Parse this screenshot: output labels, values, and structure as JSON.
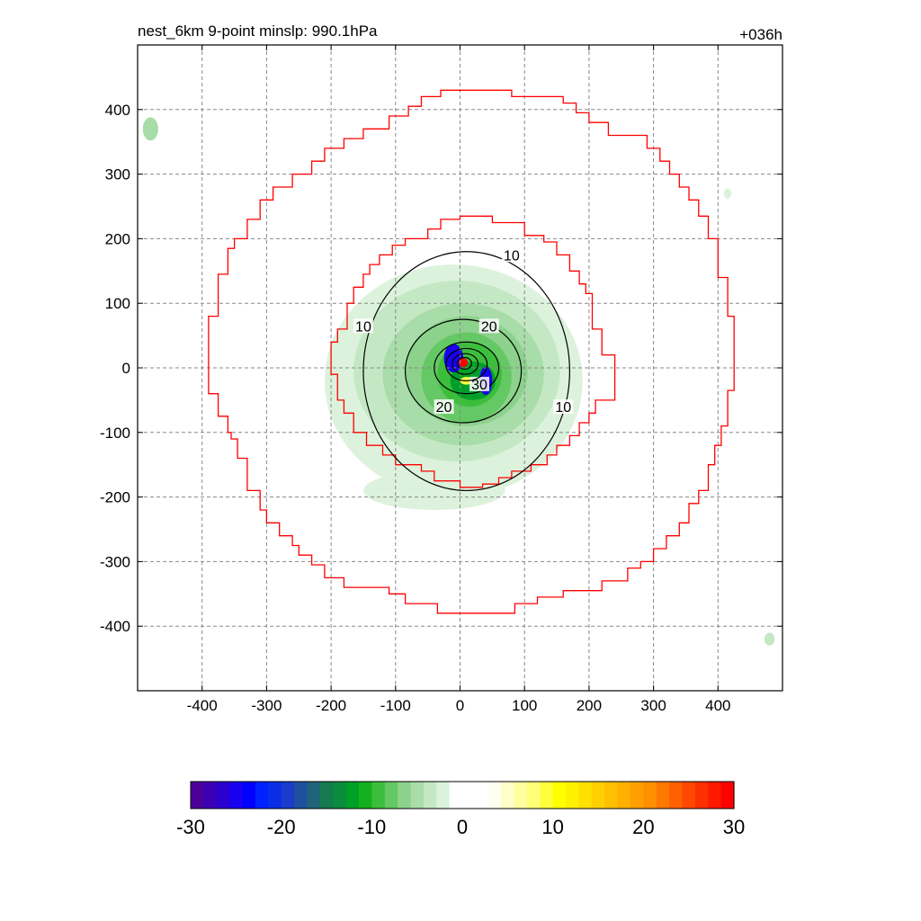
{
  "chart_data": {
    "type": "heatmap",
    "title": "nest_6km  9-point minslp: 990.1hPa",
    "title_right": "+036h",
    "xlabel": "",
    "ylabel": "",
    "xlim": [
      -500,
      500
    ],
    "ylim": [
      -500,
      500
    ],
    "xticks": [
      -400,
      -300,
      -200,
      -100,
      0,
      100,
      200,
      300,
      400
    ],
    "yticks": [
      -400,
      -300,
      -200,
      -100,
      0,
      100,
      200,
      300,
      400
    ],
    "grid": true,
    "grid_style": "dashed",
    "center": [
      5,
      5
    ],
    "colorbar": {
      "orientation": "horizontal",
      "range": [
        -30,
        30
      ],
      "tick_labels": [
        -30,
        -20,
        -10,
        0,
        10,
        20,
        30
      ],
      "colors": [
        "#4b0097",
        "#3c00b4",
        "#2d00d2",
        "#1a00f0",
        "#0000ff",
        "#0022ff",
        "#0a2ee6",
        "#1a3cc8",
        "#1f50a0",
        "#1f6478",
        "#167a50",
        "#0a8c3c",
        "#00a028",
        "#14b01e",
        "#3cbe3c",
        "#64c864",
        "#8cd28c",
        "#a8dca8",
        "#c4e8c4",
        "#dcf2dc",
        "#ffffff",
        "#ffffff",
        "#ffffff",
        "#fffff0",
        "#ffffc8",
        "#ffffa0",
        "#ffff78",
        "#ffff3c",
        "#ffff00",
        "#fff000",
        "#ffe000",
        "#ffd000",
        "#ffc000",
        "#ffb000",
        "#ffa000",
        "#ff9000",
        "#ff7800",
        "#ff6000",
        "#ff4800",
        "#ff3000",
        "#ff1800",
        "#ff0000"
      ]
    },
    "shaded_field": [
      {
        "cx": -10,
        "cy": -20,
        "rx": 200,
        "ry": 180,
        "color": "#dcf2dc"
      },
      {
        "cx": -40,
        "cy": -190,
        "rx": 110,
        "ry": 30,
        "color": "#dcf2dc"
      },
      {
        "cx": -5,
        "cy": -5,
        "rx": 160,
        "ry": 140,
        "color": "#c4e8c4"
      },
      {
        "cx": 5,
        "cy": -10,
        "rx": 125,
        "ry": 110,
        "color": "#a8dca8"
      },
      {
        "cx": 10,
        "cy": -5,
        "rx": 95,
        "ry": 85,
        "color": "#8cd28c"
      },
      {
        "cx": 10,
        "cy": -15,
        "rx": 70,
        "ry": 70,
        "color": "#64c864"
      },
      {
        "cx": 15,
        "cy": -10,
        "rx": 50,
        "ry": 50,
        "color": "#3cbe3c"
      },
      {
        "cx": 20,
        "cy": -20,
        "rx": 35,
        "ry": 30,
        "color": "#00a028"
      },
      {
        "cx": -10,
        "cy": 15,
        "rx": 15,
        "ry": 22,
        "color": "#1a00f0"
      },
      {
        "cx": 40,
        "cy": -20,
        "rx": 10,
        "ry": 22,
        "color": "#1a00f0"
      },
      {
        "cx": 10,
        "cy": -20,
        "rx": 10,
        "ry": 6,
        "color": "#ffff3c"
      },
      {
        "cx": 5,
        "cy": 8,
        "rx": 7,
        "ry": 7,
        "color": "#ff0000"
      },
      {
        "cx": -480,
        "cy": 370,
        "rx": 12,
        "ry": 18,
        "color": "#a8dca8"
      },
      {
        "cx": 480,
        "cy": -420,
        "rx": 8,
        "ry": 10,
        "color": "#c4e8c4"
      },
      {
        "cx": 415,
        "cy": 270,
        "rx": 6,
        "ry": 8,
        "color": "#dcf2dc"
      }
    ],
    "contours": [
      {
        "level": 10,
        "cx": 10,
        "cy": -5,
        "rx": 160,
        "ry": 185,
        "label_at": [
          [
            80,
            175
          ],
          [
            -150,
            65
          ],
          [
            160,
            -60
          ]
        ]
      },
      {
        "level": 20,
        "cx": 5,
        "cy": -5,
        "rx": 90,
        "ry": 80,
        "label_at": [
          [
            45,
            65
          ],
          [
            -25,
            -60
          ]
        ]
      },
      {
        "level": 30,
        "cx": 10,
        "cy": 0,
        "rx": 50,
        "ry": 40,
        "label_at": [
          [
            30,
            -25
          ]
        ]
      },
      {
        "level": 40,
        "cx": 10,
        "cy": 5,
        "rx": 32,
        "ry": 25,
        "label_at": []
      },
      {
        "level": 50,
        "cx": 8,
        "cy": 6,
        "rx": 20,
        "ry": 16,
        "label_at": []
      },
      {
        "level": 60,
        "cx": 7,
        "cy": 7,
        "rx": 11,
        "ry": 9,
        "label_at": []
      }
    ],
    "outer_boundary_steps": [
      [
        -30,
        430
      ],
      [
        80,
        430
      ],
      [
        80,
        420
      ],
      [
        160,
        420
      ],
      [
        160,
        410
      ],
      [
        180,
        410
      ],
      [
        180,
        395
      ],
      [
        200,
        395
      ],
      [
        200,
        380
      ],
      [
        230,
        380
      ],
      [
        230,
        360
      ],
      [
        290,
        360
      ],
      [
        290,
        340
      ],
      [
        310,
        340
      ],
      [
        310,
        320
      ],
      [
        325,
        320
      ],
      [
        325,
        300
      ],
      [
        340,
        300
      ],
      [
        340,
        280
      ],
      [
        355,
        280
      ],
      [
        355,
        260
      ],
      [
        370,
        260
      ],
      [
        370,
        235
      ],
      [
        385,
        235
      ],
      [
        385,
        200
      ],
      [
        400,
        200
      ],
      [
        400,
        140
      ],
      [
        415,
        140
      ],
      [
        415,
        80
      ],
      [
        425,
        80
      ],
      [
        425,
        -35
      ],
      [
        415,
        -35
      ],
      [
        415,
        -90
      ],
      [
        405,
        -90
      ],
      [
        405,
        -120
      ],
      [
        395,
        -120
      ],
      [
        395,
        -150
      ],
      [
        385,
        -150
      ],
      [
        385,
        -190
      ],
      [
        370,
        -190
      ],
      [
        370,
        -210
      ],
      [
        355,
        -210
      ],
      [
        355,
        -240
      ],
      [
        340,
        -240
      ],
      [
        340,
        -260
      ],
      [
        320,
        -260
      ],
      [
        320,
        -280
      ],
      [
        300,
        -280
      ],
      [
        300,
        -300
      ],
      [
        280,
        -300
      ],
      [
        280,
        -310
      ],
      [
        260,
        -310
      ],
      [
        260,
        -330
      ],
      [
        220,
        -330
      ],
      [
        220,
        -345
      ],
      [
        160,
        -345
      ],
      [
        160,
        -355
      ],
      [
        120,
        -355
      ],
      [
        120,
        -365
      ],
      [
        85,
        -365
      ],
      [
        85,
        -380
      ],
      [
        -35,
        -380
      ],
      [
        -35,
        -365
      ],
      [
        -85,
        -365
      ],
      [
        -85,
        -350
      ],
      [
        -110,
        -350
      ],
      [
        -110,
        -340
      ],
      [
        -180,
        -340
      ],
      [
        -180,
        -325
      ],
      [
        -210,
        -325
      ],
      [
        -210,
        -305
      ],
      [
        -230,
        -305
      ],
      [
        -230,
        -290
      ],
      [
        -250,
        -290
      ],
      [
        -250,
        -275
      ],
      [
        -260,
        -275
      ],
      [
        -260,
        -260
      ],
      [
        -280,
        -260
      ],
      [
        -280,
        -240
      ],
      [
        -300,
        -240
      ],
      [
        -300,
        -220
      ],
      [
        -310,
        -220
      ],
      [
        -310,
        -190
      ],
      [
        -330,
        -190
      ],
      [
        -330,
        -140
      ],
      [
        -345,
        -140
      ],
      [
        -345,
        -110
      ],
      [
        -355,
        -110
      ],
      [
        -355,
        -100
      ],
      [
        -360,
        -100
      ],
      [
        -360,
        -75
      ],
      [
        -375,
        -75
      ],
      [
        -375,
        -40
      ],
      [
        -390,
        -40
      ],
      [
        -390,
        80
      ],
      [
        -375,
        80
      ],
      [
        -375,
        145
      ],
      [
        -360,
        145
      ],
      [
        -360,
        185
      ],
      [
        -350,
        185
      ],
      [
        -350,
        200
      ],
      [
        -330,
        200
      ],
      [
        -330,
        230
      ],
      [
        -310,
        230
      ],
      [
        -310,
        260
      ],
      [
        -290,
        260
      ],
      [
        -290,
        280
      ],
      [
        -260,
        280
      ],
      [
        -260,
        300
      ],
      [
        -230,
        300
      ],
      [
        -230,
        320
      ],
      [
        -210,
        320
      ],
      [
        -210,
        340
      ],
      [
        -180,
        340
      ],
      [
        -180,
        355
      ],
      [
        -150,
        355
      ],
      [
        -150,
        370
      ],
      [
        -110,
        370
      ],
      [
        -110,
        390
      ],
      [
        -80,
        390
      ],
      [
        -80,
        405
      ],
      [
        -60,
        405
      ],
      [
        -60,
        420
      ],
      [
        -30,
        420
      ],
      [
        -30,
        430
      ]
    ],
    "inner_boundary_steps": [
      [
        0,
        235
      ],
      [
        50,
        235
      ],
      [
        50,
        225
      ],
      [
        100,
        225
      ],
      [
        100,
        205
      ],
      [
        130,
        205
      ],
      [
        130,
        195
      ],
      [
        150,
        195
      ],
      [
        150,
        175
      ],
      [
        170,
        175
      ],
      [
        170,
        150
      ],
      [
        185,
        150
      ],
      [
        185,
        130
      ],
      [
        195,
        130
      ],
      [
        195,
        115
      ],
      [
        205,
        115
      ],
      [
        205,
        60
      ],
      [
        220,
        60
      ],
      [
        220,
        20
      ],
      [
        240,
        20
      ],
      [
        240,
        -50
      ],
      [
        210,
        -50
      ],
      [
        210,
        -70
      ],
      [
        200,
        -70
      ],
      [
        200,
        -85
      ],
      [
        185,
        -85
      ],
      [
        185,
        -105
      ],
      [
        170,
        -105
      ],
      [
        170,
        -120
      ],
      [
        150,
        -120
      ],
      [
        150,
        -135
      ],
      [
        135,
        -135
      ],
      [
        135,
        -150
      ],
      [
        110,
        -150
      ],
      [
        110,
        -160
      ],
      [
        80,
        -160
      ],
      [
        80,
        -170
      ],
      [
        60,
        -170
      ],
      [
        60,
        -180
      ],
      [
        35,
        -180
      ],
      [
        35,
        -185
      ],
      [
        0,
        -185
      ],
      [
        0,
        -175
      ],
      [
        -40,
        -175
      ],
      [
        -40,
        -160
      ],
      [
        -60,
        -160
      ],
      [
        -60,
        -150
      ],
      [
        -100,
        -150
      ],
      [
        -100,
        -135
      ],
      [
        -120,
        -135
      ],
      [
        -120,
        -120
      ],
      [
        -145,
        -120
      ],
      [
        -145,
        -100
      ],
      [
        -165,
        -100
      ],
      [
        -165,
        -70
      ],
      [
        -180,
        -70
      ],
      [
        -180,
        -50
      ],
      [
        -190,
        -50
      ],
      [
        -190,
        -10
      ],
      [
        -200,
        -10
      ],
      [
        -200,
        40
      ],
      [
        -190,
        40
      ],
      [
        -190,
        60
      ],
      [
        -175,
        60
      ],
      [
        -175,
        100
      ],
      [
        -165,
        100
      ],
      [
        -165,
        125
      ],
      [
        -150,
        125
      ],
      [
        -150,
        145
      ],
      [
        -140,
        145
      ],
      [
        -140,
        160
      ],
      [
        -125,
        160
      ],
      [
        -125,
        175
      ],
      [
        -105,
        175
      ],
      [
        -105,
        190
      ],
      [
        -85,
        190
      ],
      [
        -85,
        200
      ],
      [
        -50,
        200
      ],
      [
        -50,
        215
      ],
      [
        -30,
        215
      ],
      [
        -30,
        230
      ],
      [
        0,
        230
      ],
      [
        0,
        235
      ]
    ]
  }
}
